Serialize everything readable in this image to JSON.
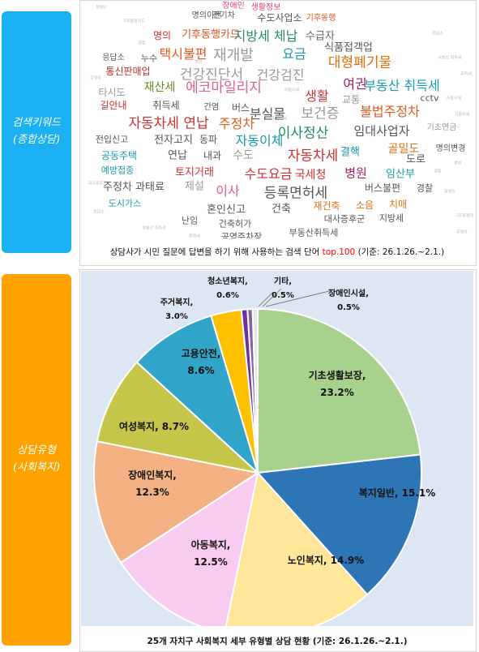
{
  "side_labels": {
    "top": [
      "검색키워드",
      "(종합상담)"
    ],
    "bottom": [
      "상담유형",
      "(사회복지)"
    ]
  },
  "wordcloud": {
    "caption_prefix": "상담사가 시민 질문에 답변을 하기 위해 사용하는 검색 단어 ",
    "caption_highlight": "top.100",
    "caption_suffix": " (기준: 26.1.26.~2.1.)",
    "words": [
      {
        "text": "장애인",
        "color": "#e0407a"
      },
      {
        "text": "생활정보",
        "color": "#e0407a"
      },
      {
        "text": "명의이전",
        "color": "#555555"
      },
      {
        "text": "전기차",
        "color": "#555555"
      },
      {
        "text": "수도사업소",
        "color": "#555555"
      },
      {
        "text": "기후동행",
        "color": "#e05020"
      },
      {
        "text": "명의",
        "color": "#d03030"
      },
      {
        "text": "기후동행카드",
        "color": "#e05020"
      },
      {
        "text": "지방세 체납",
        "color": "#2a8a6a"
      },
      {
        "text": "수급자",
        "color": "#666666"
      },
      {
        "text": "택시불편",
        "color": "#e05a20"
      },
      {
        "text": "재개발",
        "color": "#999999"
      },
      {
        "text": "요금",
        "color": "#1a9aaa"
      },
      {
        "text": "식품접객업",
        "color": "#555555"
      },
      {
        "text": "응답소",
        "color": "#555555"
      },
      {
        "text": "누수",
        "color": "#555555"
      },
      {
        "text": "건강진단서",
        "color": "#999999"
      },
      {
        "text": "건강검진",
        "color": "#999999"
      },
      {
        "text": "대형폐기물",
        "color": "#e07010"
      },
      {
        "text": "통신판매업",
        "color": "#c03030"
      },
      {
        "text": "여권",
        "color": "#a02060"
      },
      {
        "text": "부동산 취득세",
        "color": "#1a9aaa"
      },
      {
        "text": "재산세",
        "color": "#6a8a20"
      },
      {
        "text": "에코마일리지",
        "color": "#e06090"
      },
      {
        "text": "생활",
        "color": "#d03030"
      },
      {
        "text": "교통",
        "color": "#999999"
      },
      {
        "text": "타시도",
        "color": "#999999"
      },
      {
        "text": "길안내",
        "color": "#d03030"
      },
      {
        "text": "취득세",
        "color": "#555555"
      },
      {
        "text": "간염",
        "color": "#555555"
      },
      {
        "text": "버스",
        "color": "#555555"
      },
      {
        "text": "분실물",
        "color": "#555555"
      },
      {
        "text": "보건증",
        "color": "#999999"
      },
      {
        "text": "불법주정차",
        "color": "#e05a20"
      },
      {
        "text": "자동차세 연납",
        "color": "#d03030"
      },
      {
        "text": "주정차",
        "color": "#e06020"
      },
      {
        "text": "이사정산",
        "color": "#2a8a6a"
      },
      {
        "text": "임대사업자",
        "color": "#555555"
      },
      {
        "text": "기초연금",
        "color": "#999999"
      },
      {
        "text": "전입신고",
        "color": "#555555"
      },
      {
        "text": "전자고지",
        "color": "#555555"
      },
      {
        "text": "동파",
        "color": "#555555"
      },
      {
        "text": "자동이체",
        "color": "#1a9aaa"
      },
      {
        "text": "결핵",
        "color": "#1a9aaa"
      },
      {
        "text": "골밀도",
        "color": "#e07010"
      },
      {
        "text": "공동주택",
        "color": "#1a9aaa"
      },
      {
        "text": "연납",
        "color": "#555555"
      },
      {
        "text": "내과",
        "color": "#555555"
      },
      {
        "text": "수도",
        "color": "#999999"
      },
      {
        "text": "자동차세",
        "color": "#d03030"
      },
      {
        "text": "명의변경",
        "color": "#555555"
      },
      {
        "text": "도로",
        "color": "#555555"
      },
      {
        "text": "예방접종",
        "color": "#1a9aaa"
      },
      {
        "text": "토지거래",
        "color": "#d03030"
      },
      {
        "text": "수도요금",
        "color": "#d03030"
      },
      {
        "text": "국세청",
        "color": "#d03030"
      },
      {
        "text": "병원",
        "color": "#a02060"
      },
      {
        "text": "임산부",
        "color": "#1a9aaa"
      },
      {
        "text": "주정차 과태료",
        "color": "#555555"
      },
      {
        "text": "제설",
        "color": "#999999"
      },
      {
        "text": "이사",
        "color": "#e06090"
      },
      {
        "text": "등록면허세",
        "color": "#555555"
      },
      {
        "text": "버스불편",
        "color": "#555555"
      },
      {
        "text": "경찰",
        "color": "#555555"
      },
      {
        "text": "도시가스",
        "color": "#1a9aaa"
      },
      {
        "text": "혼인신고",
        "color": "#555555"
      },
      {
        "text": "건축",
        "color": "#555555"
      },
      {
        "text": "재건축",
        "color": "#e07010"
      },
      {
        "text": "소음",
        "color": "#e07010"
      },
      {
        "text": "치매",
        "color": "#e07010"
      },
      {
        "text": "대사증후군",
        "color": "#555555"
      },
      {
        "text": "지방세",
        "color": "#555555"
      },
      {
        "text": "난임",
        "color": "#555555"
      },
      {
        "text": "건축허가",
        "color": "#555555"
      },
      {
        "text": "부동산취득세",
        "color": "#555555"
      },
      {
        "text": "공영주차장",
        "color": "#555555"
      },
      {
        "text": "cctv",
        "color": "#555555"
      }
    ]
  },
  "chart_data": {
    "type": "pie",
    "title": "",
    "caption": "25개 자치구 사회복지 세부 유형별 상담 현황 (기준: 26.1.26.~2.1.)",
    "unit": "%",
    "slices": [
      {
        "name": "기초생활보장",
        "value": 23.2,
        "color": "#a9d18e"
      },
      {
        "name": "복지일반",
        "value": 15.1,
        "color": "#2e75b6"
      },
      {
        "name": "노인복지",
        "value": 14.9,
        "color": "#ffe699"
      },
      {
        "name": "아동복지",
        "value": 12.5,
        "color": "#f8cbf1"
      },
      {
        "name": "장애인복지",
        "value": 12.3,
        "color": "#f4b183"
      },
      {
        "name": "여성복지",
        "value": 8.7,
        "color": "#c5c54a"
      },
      {
        "name": "고용안전",
        "value": 8.6,
        "color": "#31a5c9"
      },
      {
        "name": "주거복지",
        "value": 3.0,
        "color": "#ffc000"
      },
      {
        "name": "청소년복지",
        "value": 0.6,
        "color": "#7030a0"
      },
      {
        "name": "기타",
        "value": 0.5,
        "color": "#8064a2"
      },
      {
        "name": "장애인시설",
        "value": 0.5,
        "color": "#e7e6e6"
      }
    ],
    "labels": [
      {
        "name": "기초생활보장,",
        "value": "23.2%"
      },
      {
        "name": "복지일반, 15.1%",
        "value": ""
      },
      {
        "name": "노인복지, 14.9%",
        "value": ""
      },
      {
        "name": "아동복지,",
        "value": "12.5%"
      },
      {
        "name": "장애인복지,",
        "value": "12.3%"
      },
      {
        "name": "여성복지, 8.7%",
        "value": ""
      },
      {
        "name": "고용안전,",
        "value": "8.6%"
      },
      {
        "name": "주거복지,",
        "value": "3.0%"
      },
      {
        "name": "청소년복지,",
        "value": "0.6%"
      },
      {
        "name": "기타,",
        "value": "0.5%"
      },
      {
        "name": "장애인시설,",
        "value": "0.5%"
      }
    ]
  }
}
